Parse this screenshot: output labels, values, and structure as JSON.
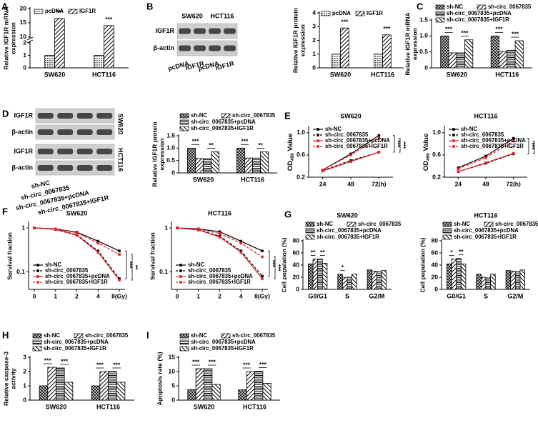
{
  "chart_data": [
    {
      "type": "bar",
      "label": "A",
      "ylabel": [
        "Relative IGF1R mRNA",
        "expression"
      ],
      "categories": [
        "SW620",
        "HCT116"
      ],
      "series": [
        {
          "name": "pcDNA",
          "color": "#000000",
          "pattern": "dots",
          "values": [
            1,
            1
          ]
        },
        {
          "name": "IGF1R",
          "color": "#000000",
          "pattern": "hatch",
          "values": [
            16.5,
            14
          ]
        }
      ],
      "ylim": [
        0,
        20
      ],
      "ybreak": [
        2,
        10
      ],
      "yticks": [
        0,
        1,
        2,
        10,
        15,
        20
      ],
      "legend": "top",
      "significance": [
        [
          "***"
        ],
        [
          "***"
        ]
      ]
    },
    {
      "type": "blot",
      "label": "B",
      "groups": [
        "SW620",
        "HCT116"
      ],
      "group_position": "top",
      "rows": [
        "IGF1R",
        "β-actin"
      ],
      "lanes": [
        "pcDNA",
        "IGF1R",
        "pcDNA",
        "IGF1R"
      ]
    },
    {
      "type": "bar",
      "ylabel": [
        "Relative IGF1R protein",
        "expression"
      ],
      "categories": [
        "SW620",
        "HCT116"
      ],
      "series": [
        {
          "name": "pcDNA",
          "color": "#000000",
          "pattern": "dots",
          "values": [
            1,
            1
          ]
        },
        {
          "name": "IGF1R",
          "color": "#000000",
          "pattern": "hatch",
          "values": [
            2.9,
            2.4
          ]
        }
      ],
      "ylim": [
        0,
        4
      ],
      "yticks": [
        0,
        1,
        2,
        3,
        4
      ],
      "legend": "top",
      "significance": [
        [
          "***"
        ],
        [
          "***"
        ]
      ]
    },
    {
      "type": "bar",
      "label": "C",
      "ylabel": [
        "Relative IGF1R mRNA",
        "expression"
      ],
      "categories": [
        "SW620",
        "HCT116"
      ],
      "series": [
        {
          "name": "sh-NC",
          "color": "#000000",
          "pattern": "check",
          "values": [
            1,
            1
          ]
        },
        {
          "name": "sh-circ_0067835",
          "color": "#000000",
          "pattern": "hatch",
          "values": [
            0.47,
            0.52
          ]
        },
        {
          "name": "sh-circ_0067835+pcDNA",
          "color": "#000000",
          "pattern": "hlines",
          "values": [
            0.47,
            0.55
          ]
        },
        {
          "name": "sh-circ_0067835+IGF1R",
          "color": "#000000",
          "pattern": "bhatch",
          "values": [
            0.88,
            0.85
          ]
        }
      ],
      "ylim": [
        0,
        1.5
      ],
      "yticks": [
        0,
        0.5,
        {
          "value": 1,
          "label": "1.0"
        },
        1.5
      ],
      "legend": "top",
      "significance": [
        [
          "***",
          "***"
        ],
        [
          "***",
          "***"
        ]
      ]
    },
    {
      "type": "blot",
      "label": "D",
      "groups": [
        "SW620",
        "HCT116"
      ],
      "group_position": "side",
      "rows": [
        "IGF1R",
        "β-actin",
        "IGF1R",
        "β-actin"
      ],
      "lanes": [
        "sh-NC",
        "sh-circ_0067835",
        "sh-circ_0067835+pcDNA",
        "sh-circ_0067835+IGF1R"
      ]
    },
    {
      "type": "bar",
      "ylabel": [
        "Relative IGF1R protein",
        "expression"
      ],
      "categories": [
        "SW620",
        "HCT116"
      ],
      "series": [
        {
          "name": "sh-NC",
          "color": "#000000",
          "pattern": "check",
          "values": [
            1,
            1
          ]
        },
        {
          "name": "sh-circ_0067835",
          "color": "#000000",
          "pattern": "hatch",
          "values": [
            0.58,
            0.6
          ]
        },
        {
          "name": "sh-circ_0067835+pcDNA",
          "color": "#000000",
          "pattern": "hlines",
          "values": [
            0.57,
            0.6
          ]
        },
        {
          "name": "sh-circ_0067835+IGF1R",
          "color": "#000000",
          "pattern": "bhatch",
          "values": [
            0.85,
            0.85
          ]
        }
      ],
      "ylim": [
        0,
        1.5
      ],
      "yticks": [
        0,
        0.5,
        {
          "value": 1,
          "label": "1.0"
        },
        1.5
      ],
      "legend": "top",
      "significance": [
        [
          "***",
          "**"
        ],
        [
          "***",
          "**"
        ]
      ]
    },
    {
      "type": "line",
      "label": "E",
      "title": "SW620",
      "ylabel": {
        "text": "OD",
        "sub": "450",
        "after": " Value"
      },
      "x": [
        24,
        48,
        72
      ],
      "xlim": [
        12,
        84
      ],
      "xticks": [
        24,
        48,
        {
          "value": 72,
          "label": "72(h)"
        }
      ],
      "ylim": [
        0.2,
        1.1
      ],
      "yticks": [
        0.2,
        0.6,
        {
          "value": 1,
          "label": "1.0"
        }
      ],
      "legend": "upper left",
      "series": [
        {
          "name": "sh-NC",
          "color": "#000000",
          "linestyle": "solid",
          "values": [
            0.33,
            0.62,
            0.95
          ]
        },
        {
          "name": "sh-circ_0067835",
          "color": "#000000",
          "linestyle": "dashed",
          "values": [
            0.32,
            0.5,
            0.65
          ]
        },
        {
          "name": "sh-circ_0067835+pcDNA",
          "color": "#e3232b",
          "linestyle": "solid",
          "values": [
            0.31,
            0.48,
            0.65
          ]
        },
        {
          "name": "sh-circ_0067835+IGF1R",
          "color": "#e3232b",
          "linestyle": "dashed",
          "values": [
            0.33,
            0.6,
            0.9
          ]
        }
      ],
      "significance": [
        "***",
        "***"
      ]
    },
    {
      "type": "line",
      "title": "HCT116",
      "ylabel": {
        "text": "OD",
        "sub": "450",
        "after": " Value"
      },
      "x": [
        24,
        48,
        72
      ],
      "xlim": [
        12,
        84
      ],
      "xticks": [
        24,
        48,
        {
          "value": 72,
          "label": "72(h)"
        }
      ],
      "ylim": [
        0.2,
        1.1
      ],
      "yticks": [
        0.2,
        0.6,
        {
          "value": 1,
          "label": "1.0"
        }
      ],
      "legend": "upper left",
      "series": [
        {
          "name": "sh-NC",
          "color": "#000000",
          "linestyle": "solid",
          "values": [
            0.37,
            0.58,
            0.9
          ]
        },
        {
          "name": "sh-circ_0067835",
          "color": "#000000",
          "linestyle": "dashed",
          "values": [
            0.3,
            0.45,
            0.62
          ]
        },
        {
          "name": "sh-circ_0067835+pcDNA",
          "color": "#e3232b",
          "linestyle": "solid",
          "values": [
            0.3,
            0.46,
            0.63
          ]
        },
        {
          "name": "sh-circ_0067835+IGF1R",
          "color": "#e3232b",
          "linestyle": "dashed",
          "values": [
            0.35,
            0.55,
            0.85
          ]
        }
      ],
      "significance": [
        "***",
        "***"
      ]
    },
    {
      "type": "line",
      "label": "F",
      "title": "SW620",
      "ylabel": "Survival fraction",
      "categories": [
        "0",
        "1",
        "2",
        "4",
        "8(Gy)"
      ],
      "yscale": "log",
      "ylim": [
        0.04,
        1.3
      ],
      "yticks": [
        0.1,
        1
      ],
      "legend": "lower left",
      "series": [
        {
          "name": "sh-NC",
          "color": "#000000",
          "linestyle": "solid",
          "values": [
            1,
            0.95,
            0.8,
            0.5,
            0.3
          ]
        },
        {
          "name": "sh-circ_0067835",
          "color": "#000000",
          "linestyle": "dashed",
          "values": [
            1,
            0.93,
            0.7,
            0.3,
            0.07
          ]
        },
        {
          "name": "sh-circ_0067835+pcDNA",
          "color": "#e3232b",
          "linestyle": "solid",
          "values": [
            1,
            0.92,
            0.68,
            0.28,
            0.065
          ]
        },
        {
          "name": "sh-circ_0067835+IGF1R",
          "color": "#e3232b",
          "linestyle": "dashed",
          "values": [
            1,
            0.95,
            0.78,
            0.45,
            0.25
          ]
        }
      ],
      "significance": [
        "***",
        "**"
      ]
    },
    {
      "type": "line",
      "title": "HCT116",
      "ylabel": "Survival fraction",
      "categories": [
        "0",
        "1",
        "2",
        "4",
        "8(Gy)"
      ],
      "yscale": "log",
      "ylim": [
        0.04,
        1.3
      ],
      "yticks": [
        0.1,
        1
      ],
      "legend": "lower left",
      "series": [
        {
          "name": "sh-NC",
          "color": "#000000",
          "linestyle": "solid",
          "values": [
            1,
            0.95,
            0.82,
            0.5,
            0.3
          ]
        },
        {
          "name": "sh-circ_0067835",
          "color": "#000000",
          "linestyle": "dashed",
          "values": [
            1,
            0.9,
            0.65,
            0.3,
            0.08
          ]
        },
        {
          "name": "sh-circ_0067835+pcDNA",
          "color": "#e3232b",
          "linestyle": "solid",
          "values": [
            1,
            0.9,
            0.62,
            0.28,
            0.07
          ]
        },
        {
          "name": "sh-circ_0067835+IGF1R",
          "color": "#e3232b",
          "linestyle": "dashed",
          "values": [
            1,
            0.93,
            0.75,
            0.45,
            0.22
          ]
        }
      ],
      "significance": [
        "***",
        "***"
      ]
    },
    {
      "type": "bar",
      "label": "G",
      "title": "SW620",
      "ylabel": "Cell population (%)",
      "categories": [
        "G0/G1",
        "S",
        "G2/M"
      ],
      "series": [
        {
          "name": "sh-NC",
          "color": "#000000",
          "pattern": "check",
          "values": [
            42,
            25,
            32
          ]
        },
        {
          "name": "sh-circ_0067835",
          "color": "#000000",
          "pattern": "hatch",
          "values": [
            50,
            20,
            30
          ]
        },
        {
          "name": "sh-circ_0067835+pcDNA",
          "color": "#000000",
          "pattern": "hlines",
          "values": [
            50,
            20,
            29
          ]
        },
        {
          "name": "sh-circ_0067835+IGF1R",
          "color": "#000000",
          "pattern": "bhatch",
          "values": [
            43,
            25,
            31
          ]
        }
      ],
      "ylim": [
        0,
        80
      ],
      "yticks": [
        0,
        20,
        40,
        60,
        80
      ],
      "legend": "top",
      "significance": [
        [
          "**",
          "**"
        ],
        [
          "*",
          null
        ],
        [
          null,
          null
        ]
      ]
    },
    {
      "type": "bar",
      "title": "HCT116",
      "ylabel": "Cell population (%)",
      "categories": [
        "G0/G1",
        "S",
        "G2/M"
      ],
      "series": [
        {
          "name": "sh-NC",
          "color": "#000000",
          "pattern": "check",
          "values": [
            42,
            25,
            31
          ]
        },
        {
          "name": "sh-circ_0067835",
          "color": "#000000",
          "pattern": "hatch",
          "values": [
            50,
            20,
            30
          ]
        },
        {
          "name": "sh-circ_0067835+pcDNA",
          "color": "#000000",
          "pattern": "hlines",
          "values": [
            51,
            19,
            29
          ]
        },
        {
          "name": "sh-circ_0067835+IGF1R",
          "color": "#000000",
          "pattern": "bhatch",
          "values": [
            42,
            25,
            32
          ]
        }
      ],
      "ylim": [
        0,
        80
      ],
      "yticks": [
        0,
        20,
        40,
        60,
        80
      ],
      "legend": "top",
      "significance": [
        [
          "*",
          "**"
        ],
        [
          null,
          null
        ],
        [
          null,
          null
        ]
      ]
    },
    {
      "type": "bar",
      "label": "H",
      "ylabel": [
        "Relative caspase-3",
        "activity"
      ],
      "categories": [
        "SW620",
        "HCT116"
      ],
      "series": [
        {
          "name": "sh-NC",
          "color": "#000000",
          "pattern": "check",
          "values": [
            1,
            1
          ]
        },
        {
          "name": "sh-circ_0067835",
          "color": "#000000",
          "pattern": "hatch",
          "values": [
            2.3,
            2
          ]
        },
        {
          "name": "sh-circ_0067835+pcDNA",
          "color": "#000000",
          "pattern": "hlines",
          "values": [
            2.25,
            2
          ]
        },
        {
          "name": "sh-circ_0067835+IGF1R",
          "color": "#000000",
          "pattern": "bhatch",
          "values": [
            1.25,
            1.25
          ]
        }
      ],
      "ylim": [
        0,
        3
      ],
      "yticks": [
        0,
        1,
        2,
        3
      ],
      "legend": "top",
      "significance": [
        [
          "***",
          "***"
        ],
        [
          "***",
          "***"
        ]
      ]
    },
    {
      "type": "bar",
      "label": "I",
      "ylabel": "Apoptosis rate (%)",
      "categories": [
        "SW620",
        "HCT116"
      ],
      "series": [
        {
          "name": "sh-NC",
          "color": "#000000",
          "pattern": "check",
          "values": [
            3.7,
            3.6
          ]
        },
        {
          "name": "sh-circ_0067835",
          "color": "#000000",
          "pattern": "hatch",
          "values": [
            11,
            10
          ]
        },
        {
          "name": "sh-circ_0067835+pcDNA",
          "color": "#000000",
          "pattern": "hlines",
          "values": [
            11,
            10.1
          ]
        },
        {
          "name": "sh-circ_0067835+IGF1R",
          "color": "#000000",
          "pattern": "bhatch",
          "values": [
            5.5,
            5.9
          ]
        }
      ],
      "ylim": [
        0,
        15
      ],
      "yticks": [
        0,
        5,
        10,
        15
      ],
      "legend": "top",
      "significance": [
        [
          "***",
          "***"
        ],
        [
          "***",
          "***"
        ]
      ]
    }
  ]
}
